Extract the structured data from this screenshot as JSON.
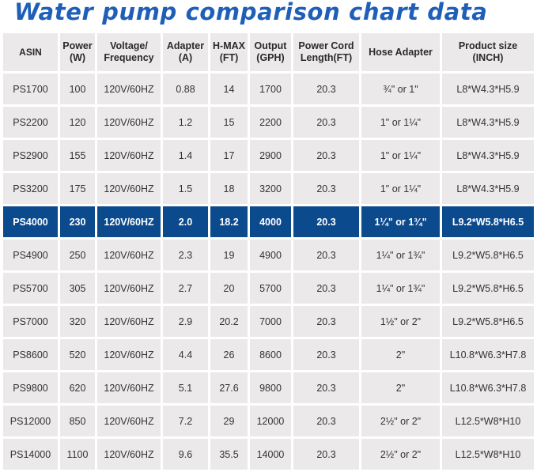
{
  "title": "Water pump comparison chart data",
  "colors": {
    "title": "#1f5fb8",
    "cell_background": "#ebe9e9",
    "highlight_background": "#0c4a8e",
    "highlight_text": "#ffffff",
    "text": "#333333"
  },
  "table": {
    "headers": {
      "asin": "ASIN",
      "power_l1": "Power",
      "power_l2": "(W)",
      "voltage_l1": "Voltage/",
      "voltage_l2": "Frequency",
      "adapter_l1": "Adapter",
      "adapter_l2": "(A)",
      "hmax_l1": "H-MAX",
      "hmax_l2": "(FT)",
      "output_l1": "Output",
      "output_l2": "(GPH)",
      "cord_l1": "Power Cord",
      "cord_l2": "Length(FT)",
      "hose": "Hose Adapter",
      "size_l1": "Product size",
      "size_l2": "(INCH)"
    },
    "highlighted_row_index": 4,
    "rows": [
      {
        "asin": "PS1700",
        "power": "100",
        "voltage": "120V/60HZ",
        "adapter": "0.88",
        "hmax": "14",
        "output": "1700",
        "cord": "20.3",
        "hose": "¾\" or 1\"",
        "size": "L8*W4.3*H5.9"
      },
      {
        "asin": "PS2200",
        "power": "120",
        "voltage": "120V/60HZ",
        "adapter": "1.2",
        "hmax": "15",
        "output": "2200",
        "cord": "20.3",
        "hose": "1\" or 1¼\"",
        "size": "L8*W4.3*H5.9"
      },
      {
        "asin": "PS2900",
        "power": "155",
        "voltage": "120V/60HZ",
        "adapter": "1.4",
        "hmax": "17",
        "output": "2900",
        "cord": "20.3",
        "hose": "1\" or 1¼\"",
        "size": "L8*W4.3*H5.9"
      },
      {
        "asin": "PS3200",
        "power": "175",
        "voltage": "120V/60HZ",
        "adapter": "1.5",
        "hmax": "18",
        "output": "3200",
        "cord": "20.3",
        "hose": "1\" or 1¼\"",
        "size": "L8*W4.3*H5.9"
      },
      {
        "asin": "PS4000",
        "power": "230",
        "voltage": "120V/60HZ",
        "adapter": "2.0",
        "hmax": "18.2",
        "output": "4000",
        "cord": "20.3",
        "hose": "1¼\" or 1¾\"",
        "size": "L9.2*W5.8*H6.5"
      },
      {
        "asin": "PS4900",
        "power": "250",
        "voltage": "120V/60HZ",
        "adapter": "2.3",
        "hmax": "19",
        "output": "4900",
        "cord": "20.3",
        "hose": "1¼\" or 1¾\"",
        "size": "L9.2*W5.8*H6.5"
      },
      {
        "asin": "PS5700",
        "power": "305",
        "voltage": "120V/60HZ",
        "adapter": "2.7",
        "hmax": "20",
        "output": "5700",
        "cord": "20.3",
        "hose": "1¼\" or 1¾\"",
        "size": "L9.2*W5.8*H6.5"
      },
      {
        "asin": "PS7000",
        "power": "320",
        "voltage": "120V/60HZ",
        "adapter": "2.9",
        "hmax": "20.2",
        "output": "7000",
        "cord": "20.3",
        "hose": "1½\" or 2\"",
        "size": "L9.2*W5.8*H6.5"
      },
      {
        "asin": "PS8600",
        "power": "520",
        "voltage": "120V/60HZ",
        "adapter": "4.4",
        "hmax": "26",
        "output": "8600",
        "cord": "20.3",
        "hose": "2\"",
        "size": "L10.8*W6.3*H7.8"
      },
      {
        "asin": "PS9800",
        "power": "620",
        "voltage": "120V/60HZ",
        "adapter": "5.1",
        "hmax": "27.6",
        "output": "9800",
        "cord": "20.3",
        "hose": "2\"",
        "size": "L10.8*W6.3*H7.8"
      },
      {
        "asin": "PS12000",
        "power": "850",
        "voltage": "120V/60HZ",
        "adapter": "7.2",
        "hmax": "29",
        "output": "12000",
        "cord": "20.3",
        "hose": "2½\" or 2\"",
        "size": "L12.5*W8*H10"
      },
      {
        "asin": "PS14000",
        "power": "1100",
        "voltage": "120V/60HZ",
        "adapter": "9.6",
        "hmax": "35.5",
        "output": "14000",
        "cord": "20.3",
        "hose": "2½\" or 2\"",
        "size": "L12.5*W8*H10"
      }
    ]
  }
}
